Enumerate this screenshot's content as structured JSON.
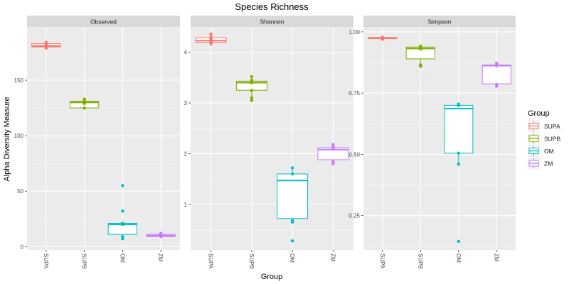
{
  "chart_data": {
    "type": "box",
    "title": "Species Richness",
    "xlabel": "Group",
    "ylabel": "Alpha Diversity Measure",
    "groups": [
      "SUPA",
      "SUPB",
      "OM",
      "ZM"
    ],
    "colors": {
      "SUPA": "#F8766D",
      "SUPB": "#7CAE00",
      "OM": "#00BFC4",
      "ZM": "#C77CFF"
    },
    "legend": {
      "title": "Group",
      "position": "right",
      "entries": [
        "SUPA",
        "SUPB",
        "OM",
        "ZM"
      ]
    },
    "grid": true,
    "panels": [
      {
        "name": "Observed",
        "ylim": [
          -3,
          198
        ],
        "yticks": [
          0,
          50,
          100,
          150
        ],
        "yticklabels": [
          "0",
          "50",
          "100",
          "150"
        ],
        "boxes": [
          {
            "group": "SUPA",
            "min": 179,
            "q1": 180,
            "median": 181,
            "q3": 183,
            "max": 184,
            "points": [
              179,
              180,
              181,
              182,
              183,
              184
            ]
          },
          {
            "group": "SUPB",
            "min": 125,
            "q1": 125,
            "median": 130,
            "q3": 131,
            "max": 132,
            "points": [
              125,
              129,
              130,
              131,
              132,
              133
            ]
          },
          {
            "group": "OM",
            "min": 8,
            "q1": 11,
            "median": 20,
            "q3": 21,
            "max": 21,
            "points": [
              7,
              9,
              20,
              21,
              32,
              55
            ]
          },
          {
            "group": "ZM",
            "min": 9,
            "q1": 9,
            "median": 10,
            "q3": 11,
            "max": 12,
            "points": [
              9,
              10,
              11,
              12
            ]
          }
        ]
      },
      {
        "name": "Shannon",
        "ylim": [
          0.1,
          4.5
        ],
        "yticks": [
          1,
          2,
          3,
          4
        ],
        "yticklabels": [
          "1",
          "2",
          "3",
          "4"
        ],
        "boxes": [
          {
            "group": "SUPA",
            "min": 4.17,
            "q1": 4.2,
            "median": 4.23,
            "q3": 4.29,
            "max": 4.35,
            "points": [
              4.17,
              4.2,
              4.22,
              4.26,
              4.3,
              4.36
            ]
          },
          {
            "group": "SUPB",
            "min": 3.1,
            "q1": 3.25,
            "median": 3.4,
            "q3": 3.43,
            "max": 3.5,
            "points": [
              3.05,
              3.1,
              3.25,
              3.4,
              3.45,
              3.52
            ]
          },
          {
            "group": "OM",
            "min": 0.72,
            "q1": 0.72,
            "median": 1.47,
            "q3": 1.6,
            "max": 1.72,
            "points": [
              0.28,
              0.65,
              0.68,
              1.6,
              1.72
            ]
          },
          {
            "group": "ZM",
            "min": 1.82,
            "q1": 1.88,
            "median": 2.08,
            "q3": 2.12,
            "max": 2.17,
            "points": [
              1.8,
              1.84,
              2.1,
              2.15,
              2.18
            ]
          }
        ]
      },
      {
        "name": "Simpson",
        "ylim": [
          0.11,
          1.02
        ],
        "yticks": [
          0.25,
          0.5,
          0.75,
          1.0
        ],
        "yticklabels": [
          "0.25",
          "0.50",
          "0.75",
          "1.00"
        ],
        "boxes": [
          {
            "group": "SUPA",
            "min": 0.97,
            "q1": 0.972,
            "median": 0.975,
            "q3": 0.977,
            "max": 0.978,
            "points": [
              0.97,
              0.973,
              0.975,
              0.977,
              0.978
            ]
          },
          {
            "group": "SUPB",
            "min": 0.868,
            "q1": 0.89,
            "median": 0.932,
            "q3": 0.938,
            "max": 0.942,
            "points": [
              0.86,
              0.865,
              0.93,
              0.937,
              0.942
            ]
          },
          {
            "group": "OM",
            "min": 0.46,
            "q1": 0.505,
            "median": 0.687,
            "q3": 0.7,
            "max": 0.705,
            "points": [
              0.145,
              0.46,
              0.505,
              0.7,
              0.705
            ]
          },
          {
            "group": "ZM",
            "min": 0.785,
            "q1": 0.788,
            "median": 0.862,
            "q3": 0.865,
            "max": 0.87,
            "points": [
              0.778,
              0.785,
              0.862,
              0.868,
              0.872
            ]
          }
        ]
      }
    ]
  }
}
